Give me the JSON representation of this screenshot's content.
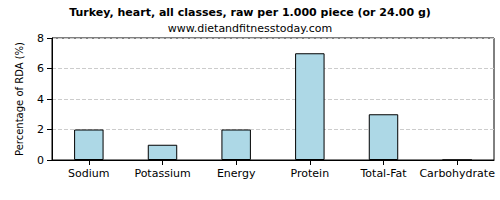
{
  "chart_data": {
    "type": "bar",
    "title": "Turkey, heart, all classes, raw per 1.000 piece (or 24.00 g)",
    "subtitle": "www.dietandfitnesstoday.com",
    "ylabel": "Percentage of RDA (%)",
    "categories": [
      "Sodium",
      "Potassium",
      "Energy",
      "Protein",
      "Total-Fat",
      "Carbohydrate"
    ],
    "values": [
      2,
      1,
      2,
      7,
      3,
      0
    ],
    "color": "#add8e6",
    "ylim": [
      0,
      8
    ],
    "yticks": [
      0,
      2,
      4,
      6,
      8
    ],
    "grid": true
  }
}
